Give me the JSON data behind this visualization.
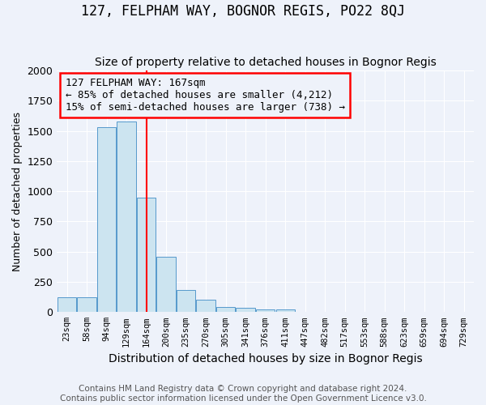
{
  "title": "127, FELPHAM WAY, BOGNOR REGIS, PO22 8QJ",
  "subtitle": "Size of property relative to detached houses in Bognor Regis",
  "xlabel": "Distribution of detached houses by size in Bognor Regis",
  "ylabel": "Number of detached properties",
  "footer_line1": "Contains HM Land Registry data © Crown copyright and database right 2024.",
  "footer_line2": "Contains public sector information licensed under the Open Government Licence v3.0.",
  "annotation_line1": "127 FELPHAM WAY: 167sqm",
  "annotation_line2": "← 85% of detached houses are smaller (4,212)",
  "annotation_line3": "15% of semi-detached houses are larger (738) →",
  "categories": [
    "23sqm",
    "58sqm",
    "94sqm",
    "129sqm",
    "164sqm",
    "200sqm",
    "235sqm",
    "270sqm",
    "305sqm",
    "341sqm",
    "376sqm",
    "411sqm",
    "447sqm",
    "482sqm",
    "517sqm",
    "553sqm",
    "588sqm",
    "623sqm",
    "659sqm",
    "694sqm",
    "729sqm"
  ],
  "values": [
    120,
    120,
    1530,
    1580,
    950,
    460,
    185,
    100,
    45,
    35,
    20,
    20,
    0,
    0,
    0,
    0,
    0,
    0,
    0,
    0,
    0
  ],
  "bar_color": "#cce4f0",
  "bar_edge_color": "#5599cc",
  "red_line_x": 4,
  "ylim": [
    0,
    2000
  ],
  "background_color": "#eef2fa",
  "title_fontsize": 12,
  "subtitle_fontsize": 10,
  "xlabel_fontsize": 10,
  "ylabel_fontsize": 9,
  "annotation_fontsize": 9,
  "footer_fontsize": 7.5
}
